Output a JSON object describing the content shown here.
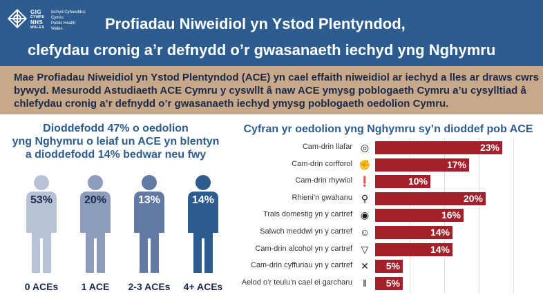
{
  "header": {
    "logo_nhs": [
      "GIG",
      "CYMRU",
      "NHS",
      "WALES"
    ],
    "logo_org": [
      "Iechyd Cyhoeddus",
      "Cymru",
      "Public Health",
      "Wales"
    ],
    "title_line1": "Profiadau Niweidiol yn Ystod Plentyndod,",
    "title_line2": "clefydau cronig a’r defnydd o’r gwasanaeth iechyd yng Nghymru"
  },
  "intro": {
    "text": "Mae Profiadau Niweidiol yn Ystod Plentyndod (ACE) yn cael effaith niweidiol ar iechyd a lles ar draws cwrs bywyd. Mesurodd Astudiaeth ACE Cymru y cyswllt â naw ACE ymysg poblogaeth Cymru a’u cysylltiad â chlefydau cronig a’r defnydd o’r gwasanaeth iechyd ymysg poblogaeth oedolion Cymru."
  },
  "left_title": [
    "Dioddefodd 47% o oedolion",
    "yng Nghymru o leiaf un ACE yn blentyn",
    "a dioddefodd 14% bedwar neu fwy"
  ],
  "right_title": "Cyfran yr oedolion yng Nghymru sy’n dioddef pob ACE",
  "colors": {
    "header_bg": "#2d5c8e",
    "intro_bg": "#c7a98a",
    "bar": "#a3202a",
    "person_0": "#b8c2d6",
    "person_1": "#8c9dbd",
    "person_2": "#6279a3",
    "person_3": "#2d5c8e"
  },
  "chart_data": [
    {
      "type": "bar",
      "orientation": "pictogram",
      "categories": [
        "0 ACEs",
        "1 ACE",
        "2-3 ACEs",
        "4+ ACEs"
      ],
      "values": [
        53,
        20,
        13,
        14
      ],
      "value_labels": [
        "53%",
        "20%",
        "13%",
        "14%"
      ],
      "title": "Dioddefodd 47% o oedolion yng Nghymru o leiaf un ACE yn blentyn a dioddefodd 14% bedwar neu fwy"
    },
    {
      "type": "bar",
      "orientation": "horizontal",
      "title": "Cyfran yr oedolion yng Nghymru sy’n dioddef pob ACE",
      "categories": [
        "Cam-drin llafar",
        "Cam-drin corfforol",
        "Cam-drin rhywiol",
        "Rhieni’n gwahanu",
        "Trais domestig yn y cartref",
        "Salwch meddwl yn y cartref",
        "Cam-drin alcohol yn y cartref",
        "Cam-drin cyffuriau yn y cartref",
        "Aelod o’r teulu’n cael ei garcharu"
      ],
      "icons": [
        "target-icon",
        "fist-icon",
        "exclamation-icon",
        "parents-icon",
        "eye-icon",
        "head-icon",
        "cocktail-icon",
        "syringe-icon",
        "prison-bars-icon"
      ],
      "values": [
        23,
        17,
        10,
        20,
        16,
        14,
        14,
        5,
        5
      ],
      "value_labels": [
        "23%",
        "17%",
        "10%",
        "20%",
        "16%",
        "14%",
        "14%",
        "5%",
        "5%"
      ],
      "xlim": [
        0,
        25
      ]
    }
  ]
}
